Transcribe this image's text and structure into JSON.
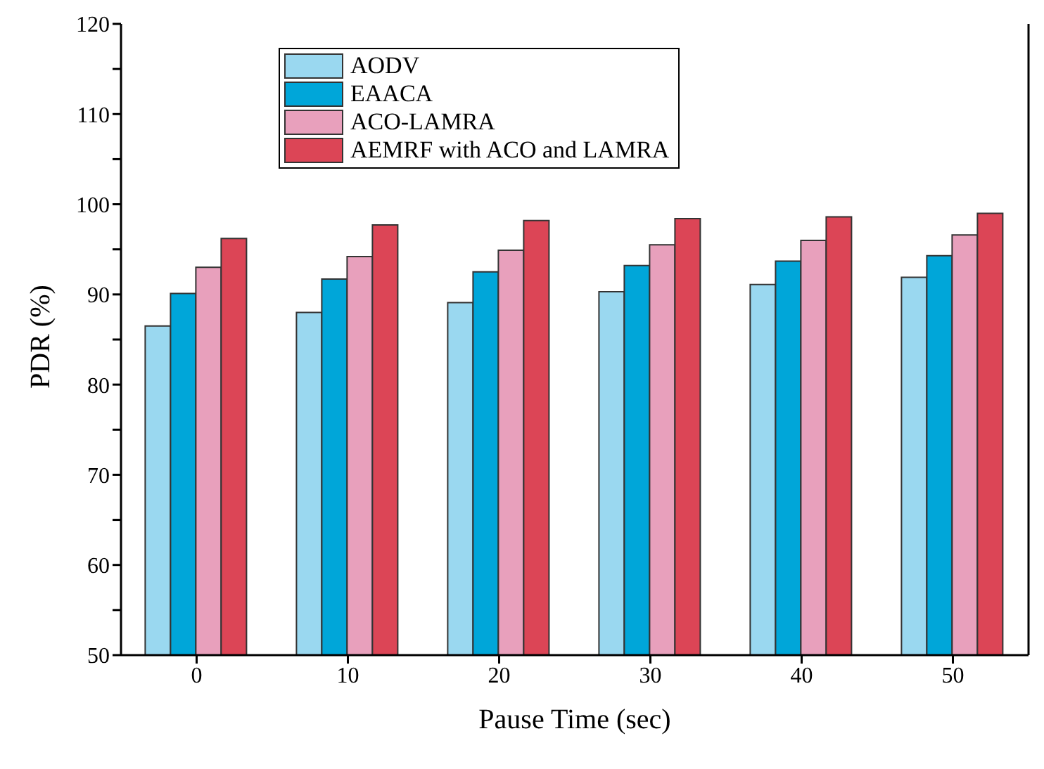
{
  "chart_data": {
    "type": "bar",
    "xlabel": "Pause Time (sec)",
    "ylabel": "PDR (%)",
    "categories": [
      "0",
      "10",
      "20",
      "30",
      "40",
      "50"
    ],
    "series": [
      {
        "name": "AODV",
        "color": "#9ad8f0",
        "values": [
          86.5,
          88.0,
          89.1,
          90.3,
          91.1,
          91.9
        ]
      },
      {
        "name": "EAACA",
        "color": "#00a6d9",
        "values": [
          90.1,
          91.7,
          92.5,
          93.2,
          93.7,
          94.3
        ]
      },
      {
        "name": "ACO-LAMRA",
        "color": "#e8a0bc",
        "values": [
          93.0,
          94.2,
          94.9,
          95.5,
          96.0,
          96.6
        ]
      },
      {
        "name": "AEMRF with ACO and LAMRA",
        "color": "#dc4556",
        "values": [
          96.2,
          97.7,
          98.2,
          98.4,
          98.6,
          99.0
        ]
      }
    ],
    "ylim": [
      50,
      120
    ],
    "yticks": [
      50,
      {
        "value": 55,
        "label": null
      },
      60,
      {
        "value": 65,
        "label": null
      },
      70,
      {
        "value": 75,
        "label": null
      },
      80,
      {
        "value": 85,
        "label": null
      },
      90,
      {
        "value": 95,
        "label": null
      },
      100,
      {
        "value": 105,
        "label": null
      },
      110,
      {
        "value": 115,
        "label": null
      },
      120
    ],
    "grid": false,
    "legend": "top"
  }
}
